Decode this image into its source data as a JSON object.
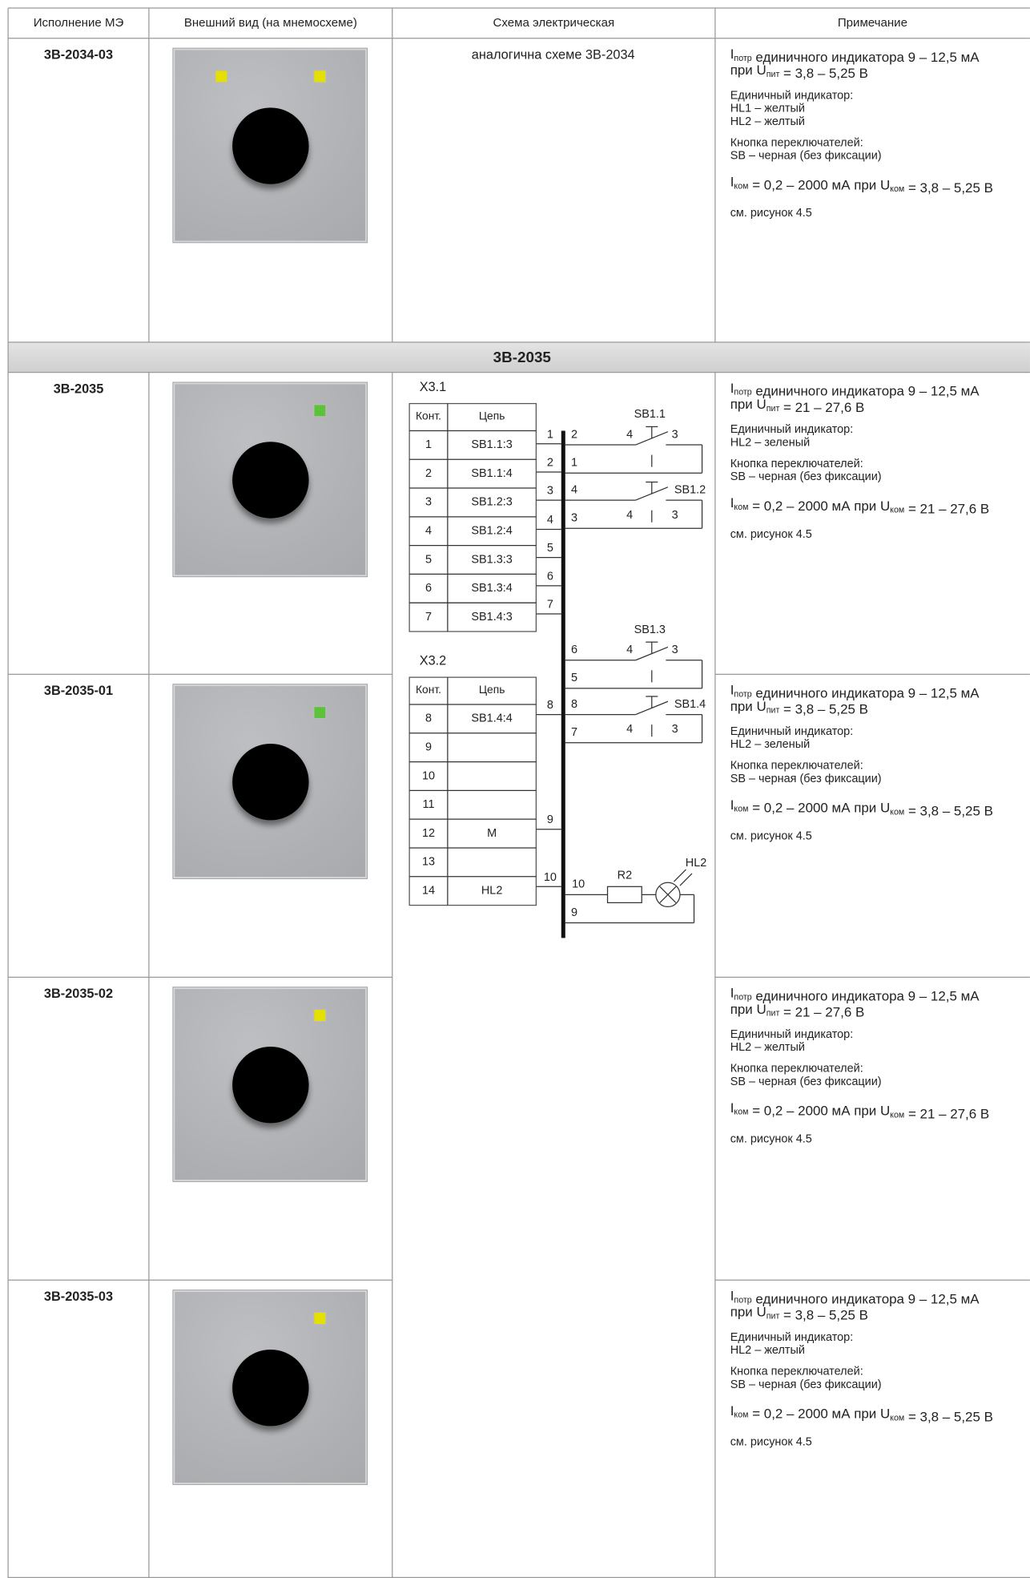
{
  "header": [
    "Исполнение МЭ",
    "Внешний вид (на мнемосхеме)",
    "Схема электрическая",
    "Примечание"
  ],
  "section": "3В-2035",
  "rows": [
    {
      "name": "3В-2034-03",
      "scheme": "аналогична схеме 3В-2034",
      "leds": [
        "#e6e000",
        "#e6e000"
      ],
      "notes": [
        [
          [
            "I",
            {
              "sub": "потр"
            },
            " единичного индикатора 9 – 12,5 мА"
          ],
          [
            "при U",
            {
              "sub": "пит"
            },
            " = 3,8 – 5,25 В"
          ]
        ],
        [
          [
            "Единичный индикатор:"
          ],
          [
            "HL1 – желтый"
          ],
          [
            "HL2 – желтый"
          ]
        ],
        [
          [
            "Кнопка переключателей:"
          ],
          [
            "SB – черная (без фиксации)"
          ]
        ],
        [
          [
            "I",
            {
              "sub": "ком"
            },
            " = 0,2 – 2000 мА при U",
            {
              "sub": "ком"
            },
            " = 3,8 – 5,25 В"
          ]
        ],
        [
          [
            "см. рисунок 4.5"
          ]
        ]
      ]
    },
    {
      "name": "3В-2035",
      "leds": [
        "#5cc23a"
      ],
      "notes": [
        [
          [
            "I",
            {
              "sub": "потр"
            },
            " единичного индикатора 9 – 12,5 мА"
          ],
          [
            "при U",
            {
              "sub": "пит"
            },
            " = 21 – 27,6 В"
          ]
        ],
        [
          [
            "Единичный индикатор:"
          ],
          [
            "HL2 – зеленый"
          ]
        ],
        [
          [
            "Кнопка переключателей:"
          ],
          [
            "SB – черная (без фиксации)"
          ]
        ],
        [
          [
            "I",
            {
              "sub": "ком"
            },
            " = 0,2 – 2000 мА при U",
            {
              "sub": "ком"
            },
            " = 21 – 27,6 В"
          ]
        ],
        [
          [
            "см. рисунок 4.5"
          ]
        ]
      ]
    },
    {
      "name": "3В-2035-01",
      "leds": [
        "#5cc23a"
      ],
      "notes": [
        [
          [
            "I",
            {
              "sub": "потр"
            },
            " единичного индикатора 9 – 12,5 мА"
          ],
          [
            "при U",
            {
              "sub": "пит"
            },
            " = 3,8 – 5,25 В"
          ]
        ],
        [
          [
            "Единичный индикатор:"
          ],
          [
            "HL2 – зеленый"
          ]
        ],
        [
          [
            "Кнопка переключателей:"
          ],
          [
            "SB – черная (без фиксации)"
          ]
        ],
        [
          [
            "I",
            {
              "sub": "ком"
            },
            " = 0,2 – 2000 мА при U",
            {
              "sub": "ком"
            },
            " = 3,8 – 5,25 В"
          ]
        ],
        [
          [
            "см. рисунок 4.5"
          ]
        ]
      ]
    },
    {
      "name": "3В-2035-02",
      "leds": [
        "#e6e000"
      ],
      "notes": [
        [
          [
            "I",
            {
              "sub": "потр"
            },
            " единичного индикатора 9 – 12,5 мА"
          ],
          [
            "при U",
            {
              "sub": "пит"
            },
            " = 21 – 27,6 В"
          ]
        ],
        [
          [
            "Единичный индикатор:"
          ],
          [
            "HL2 – желтый"
          ]
        ],
        [
          [
            "Кнопка переключателей:"
          ],
          [
            "SB – черная (без фиксации)"
          ]
        ],
        [
          [
            "I",
            {
              "sub": "ком"
            },
            " = 0,2 – 2000 мА при U",
            {
              "sub": "ком"
            },
            " = 21 – 27,6 В"
          ]
        ],
        [
          [
            "см. рисунок 4.5"
          ]
        ]
      ]
    },
    {
      "name": "3В-2035-03",
      "leds": [
        "#e6e000"
      ],
      "notes": [
        [
          [
            "I",
            {
              "sub": "потр"
            },
            " единичного индикатора 9 – 12,5 мА"
          ],
          [
            "при U",
            {
              "sub": "пит"
            },
            " = 3,8 – 5,25 В"
          ]
        ],
        [
          [
            "Единичный индикатор:"
          ],
          [
            "HL2 – желтый"
          ]
        ],
        [
          [
            "Кнопка переключателей:"
          ],
          [
            "SB – черная (без фиксации)"
          ]
        ],
        [
          [
            "I",
            {
              "sub": "ком"
            },
            " = 0,2 – 2000 мА при U",
            {
              "sub": "ком"
            },
            " = 3,8 – 5,25 В"
          ]
        ],
        [
          [
            "см. рисунок 4.5"
          ]
        ]
      ]
    }
  ],
  "schematic": {
    "connector1": {
      "label": "X3.1",
      "head": [
        "Конт.",
        "Цепь"
      ],
      "rows": [
        [
          "1",
          "SB1.1:3"
        ],
        [
          "2",
          "SB1.1:4"
        ],
        [
          "3",
          "SB1.2:3"
        ],
        [
          "4",
          "SB1.2:4"
        ],
        [
          "5",
          "SB1.3:3"
        ],
        [
          "6",
          "SB1.3:4"
        ],
        [
          "7",
          "SB1.4:3"
        ]
      ]
    },
    "connector2": {
      "label": "X3.2",
      "head": [
        "Конт.",
        "Цепь"
      ],
      "rows": [
        [
          "8",
          "SB1.4:4"
        ],
        [
          "9",
          null
        ],
        [
          "10",
          null
        ],
        [
          "11",
          null
        ],
        [
          "12",
          "M"
        ],
        [
          "13",
          null
        ],
        [
          "14",
          "HL2"
        ]
      ]
    },
    "bus_left_pins": [
      "1",
      "2",
      "3",
      "4",
      "5",
      "6",
      "7",
      "8",
      "9",
      "10"
    ],
    "bus_right_pins": [
      "2",
      "1",
      "4",
      "3",
      "6",
      "5",
      "8",
      "7",
      "10",
      "9"
    ],
    "switches": [
      {
        "label": "SB1.1",
        "pins": [
          "4",
          "3"
        ]
      },
      {
        "label": "SB1.2",
        "pins": [
          "4",
          "3"
        ]
      },
      {
        "label": "SB1.3",
        "pins": [
          "4",
          "3"
        ]
      },
      {
        "label": "SB1.4",
        "pins": [
          "4",
          "3"
        ]
      }
    ],
    "resistor": "R2",
    "lamp": "HL2"
  }
}
